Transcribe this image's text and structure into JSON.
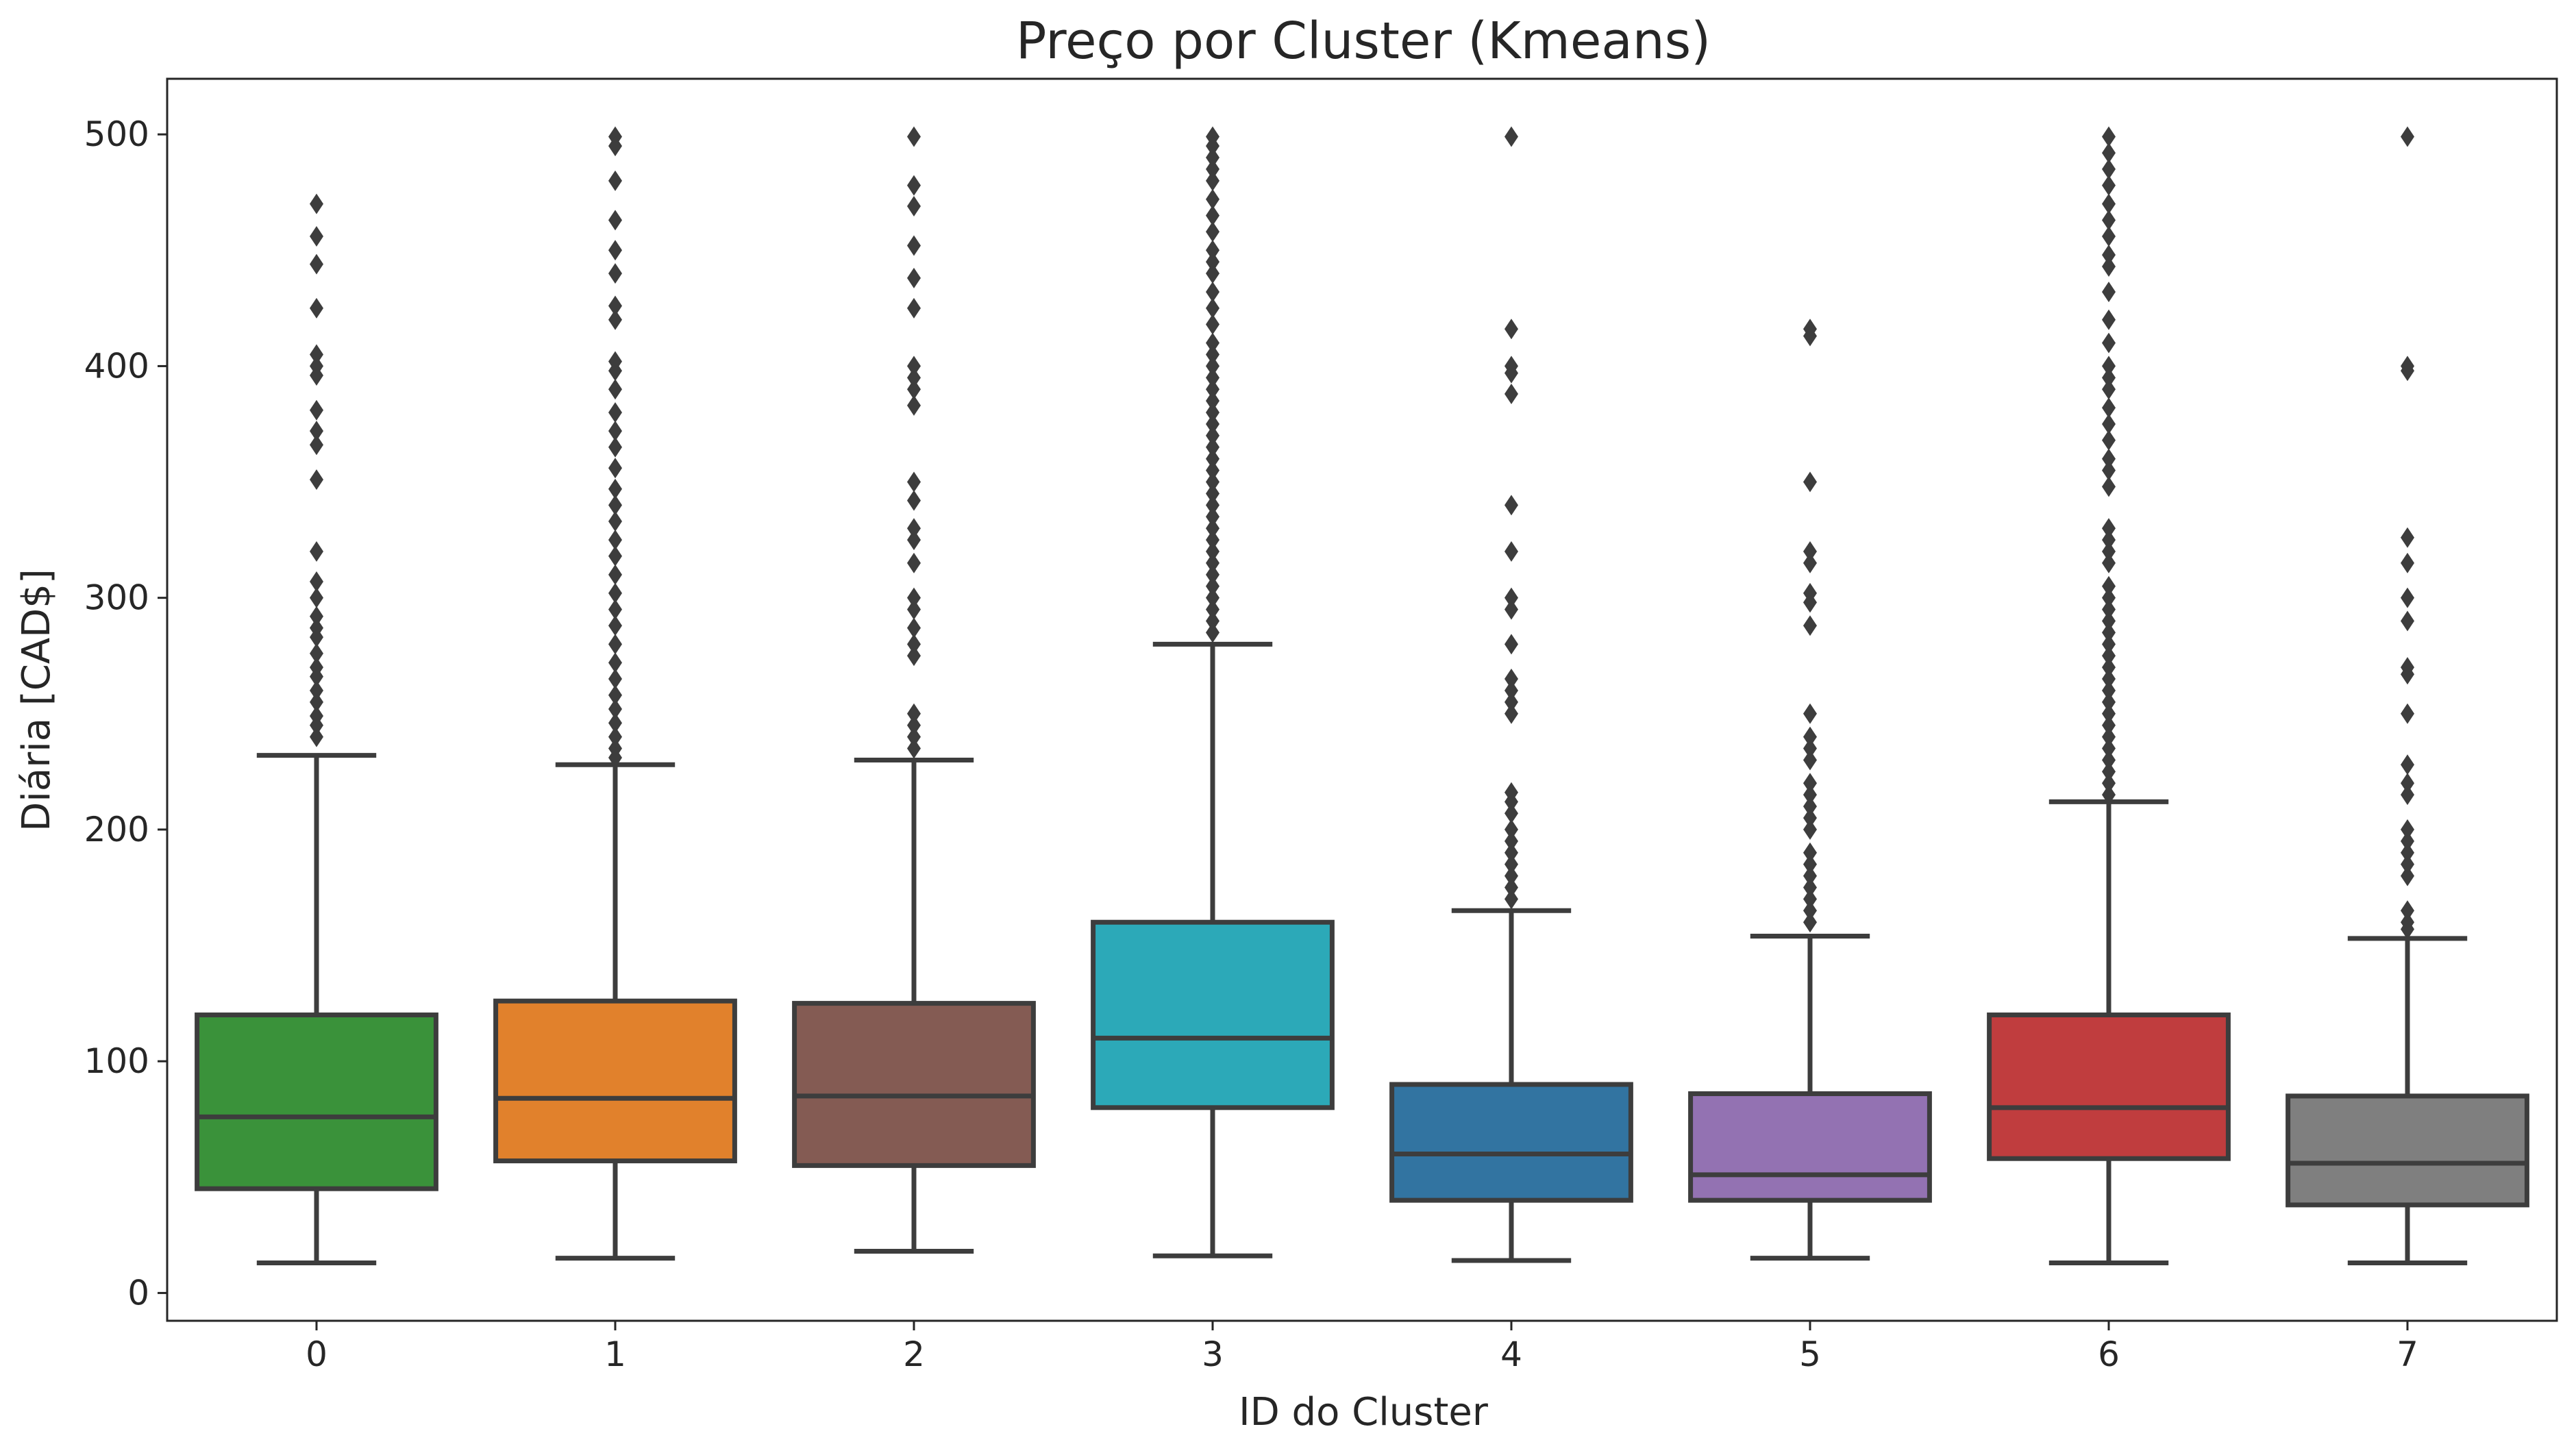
{
  "chart_data": {
    "type": "box",
    "title": "Preço por Cluster (Kmeans)",
    "xlabel": "ID do Cluster",
    "ylabel": "Diária [CAD$]",
    "ylim": [
      -12,
      524
    ],
    "yticks": [
      0,
      100,
      200,
      300,
      400,
      500
    ],
    "grid": false,
    "legend": "none",
    "categories": [
      "0",
      "1",
      "2",
      "3",
      "4",
      "5",
      "6",
      "7"
    ],
    "series": [
      {
        "category": "0",
        "color": "#3a923a",
        "whisker_low": 13,
        "q1": 45,
        "median": 76,
        "q3": 120,
        "whisker_high": 232,
        "outliers": [
          470,
          456,
          444,
          425,
          405,
          400,
          396,
          381,
          372,
          366,
          351,
          320,
          307,
          300,
          292,
          287,
          283,
          276,
          270,
          266,
          260,
          255,
          249,
          245,
          240
        ]
      },
      {
        "category": "1",
        "color": "#e1812c",
        "whisker_low": 15,
        "q1": 57,
        "median": 84,
        "q3": 126,
        "whisker_high": 228,
        "outliers": [
          499,
          495,
          480,
          463,
          450,
          440,
          426,
          420,
          402,
          398,
          390,
          380,
          372,
          365,
          356,
          347,
          340,
          333,
          325,
          318,
          310,
          302,
          295,
          288,
          280,
          272,
          265,
          258,
          252,
          246,
          240,
          235,
          231
        ]
      },
      {
        "category": "2",
        "color": "#845b53",
        "whisker_low": 18,
        "q1": 55,
        "median": 85,
        "q3": 125,
        "whisker_high": 230,
        "outliers": [
          499,
          478,
          469,
          452,
          438,
          425,
          400,
          395,
          390,
          383,
          350,
          342,
          330,
          325,
          315,
          300,
          295,
          287,
          280,
          275,
          250,
          245,
          240,
          235
        ]
      },
      {
        "category": "3",
        "color": "#2ca9b8",
        "whisker_low": 16,
        "q1": 80,
        "median": 110,
        "q3": 160,
        "whisker_high": 280,
        "outliers": [
          499,
          495,
          490,
          485,
          480,
          472,
          465,
          458,
          450,
          445,
          440,
          432,
          425,
          418,
          410,
          405,
          400,
          395,
          390,
          385,
          380,
          375,
          370,
          365,
          360,
          355,
          350,
          345,
          340,
          335,
          330,
          325,
          320,
          315,
          310,
          305,
          300,
          295,
          290,
          285
        ]
      },
      {
        "category": "4",
        "color": "#3274a1",
        "whisker_low": 14,
        "q1": 40,
        "median": 60,
        "q3": 90,
        "whisker_high": 165,
        "outliers": [
          499,
          416,
          400,
          397,
          388,
          340,
          320,
          300,
          295,
          280,
          265,
          260,
          255,
          250,
          216,
          212,
          207,
          200,
          195,
          190,
          185,
          180,
          175,
          170
        ]
      },
      {
        "category": "5",
        "color": "#9372b2",
        "whisker_low": 15,
        "q1": 40,
        "median": 51,
        "q3": 86,
        "whisker_high": 154,
        "outliers": [
          416,
          413,
          350,
          320,
          315,
          302,
          298,
          288,
          250,
          240,
          235,
          230,
          220,
          215,
          210,
          205,
          200,
          190,
          185,
          180,
          175,
          170,
          165,
          160
        ]
      },
      {
        "category": "6",
        "color": "#c03d3e",
        "whisker_low": 13,
        "q1": 58,
        "median": 80,
        "q3": 120,
        "whisker_high": 212,
        "outliers": [
          499,
          492,
          485,
          478,
          470,
          463,
          456,
          448,
          443,
          432,
          420,
          410,
          400,
          395,
          390,
          382,
          375,
          368,
          360,
          355,
          348,
          330,
          325,
          320,
          315,
          305,
          300,
          295,
          290,
          285,
          280,
          275,
          270,
          265,
          260,
          255,
          250,
          245,
          240,
          235,
          230,
          225,
          220,
          215
        ]
      },
      {
        "category": "7",
        "color": "#7f7f7f",
        "whisker_low": 13,
        "q1": 38,
        "median": 56,
        "q3": 85,
        "whisker_high": 153,
        "outliers": [
          499,
          400,
          398,
          326,
          315,
          300,
          290,
          270,
          267,
          250,
          228,
          220,
          215,
          200,
          195,
          190,
          185,
          180,
          165,
          160,
          157
        ]
      }
    ]
  }
}
